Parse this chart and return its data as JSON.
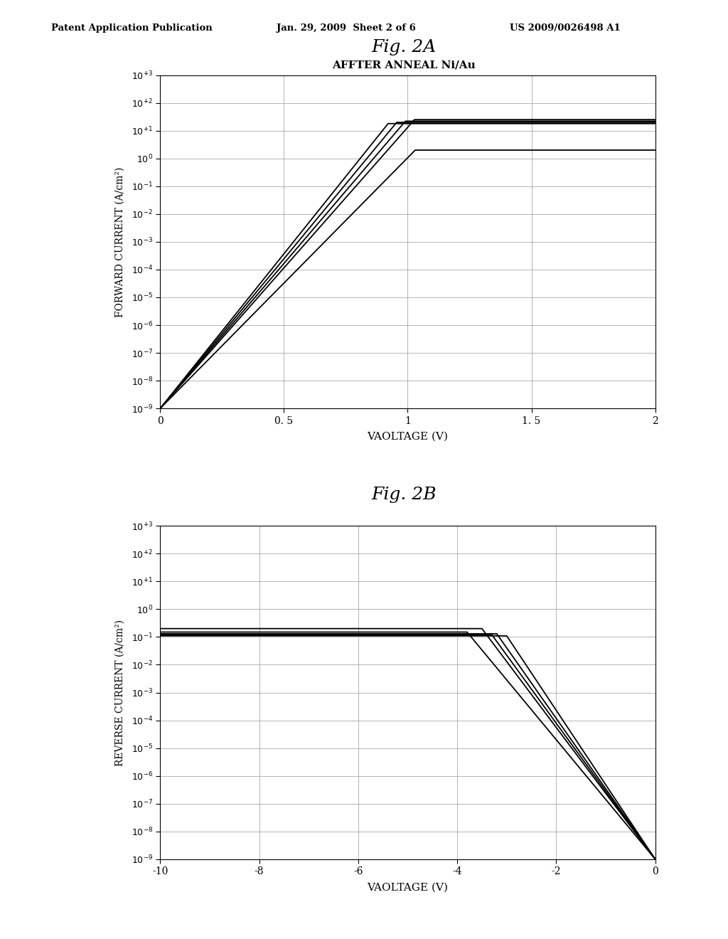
{
  "header_left": "Patent Application Publication",
  "header_center": "Jan. 29, 2009  Sheet 2 of 6",
  "header_right": "US 2009/0026498 A1",
  "fig2a_title": "Fig. 2A",
  "fig2a_subtitle": "AFFTER ANNEAL Ni/Au",
  "fig2a_xlabel": "VAOLTAGE (V)",
  "fig2a_ylabel": "FORWARD CURRENT (A/cm²)",
  "fig2a_xlim": [
    0,
    2
  ],
  "fig2a_ylim_exp": [
    -9,
    3
  ],
  "fig2a_xticks": [
    0,
    0.5,
    1,
    1.5,
    2
  ],
  "fig2a_xtick_labels": [
    "0",
    "0. 5",
    "1",
    "1. 5",
    "2"
  ],
  "fig2b_title": "Fig. 2B",
  "fig2b_xlabel": "VAOLTAGE (V)",
  "fig2b_ylabel": "REVERSE CURRENT (A/cm²)",
  "fig2b_xlim": [
    -10,
    0
  ],
  "fig2b_ylim_exp": [
    -9,
    3
  ],
  "fig2b_xticks": [
    -10,
    -8,
    -6,
    -4,
    -2,
    0
  ],
  "fig2b_xtick_labels": [
    "-10",
    "-8",
    "-6",
    "-4",
    "-2",
    "0"
  ],
  "bg_color": "#ffffff",
  "line_color": "#000000",
  "grid_color": "#999999",
  "line_width": 1.3,
  "ytick_labels": [
    "$10^{-9}$",
    "$10^{-8}$",
    "$10^{-7}$",
    "$10^{-6}$",
    "$10^{-5}$",
    "$10^{-4}$",
    "$10^{-3}$",
    "$10^{-2}$",
    "$10^{-1}$",
    "$10^{0}$",
    "$10^{+1}$",
    "$10^{+2}$",
    "$10^{+3}$"
  ]
}
